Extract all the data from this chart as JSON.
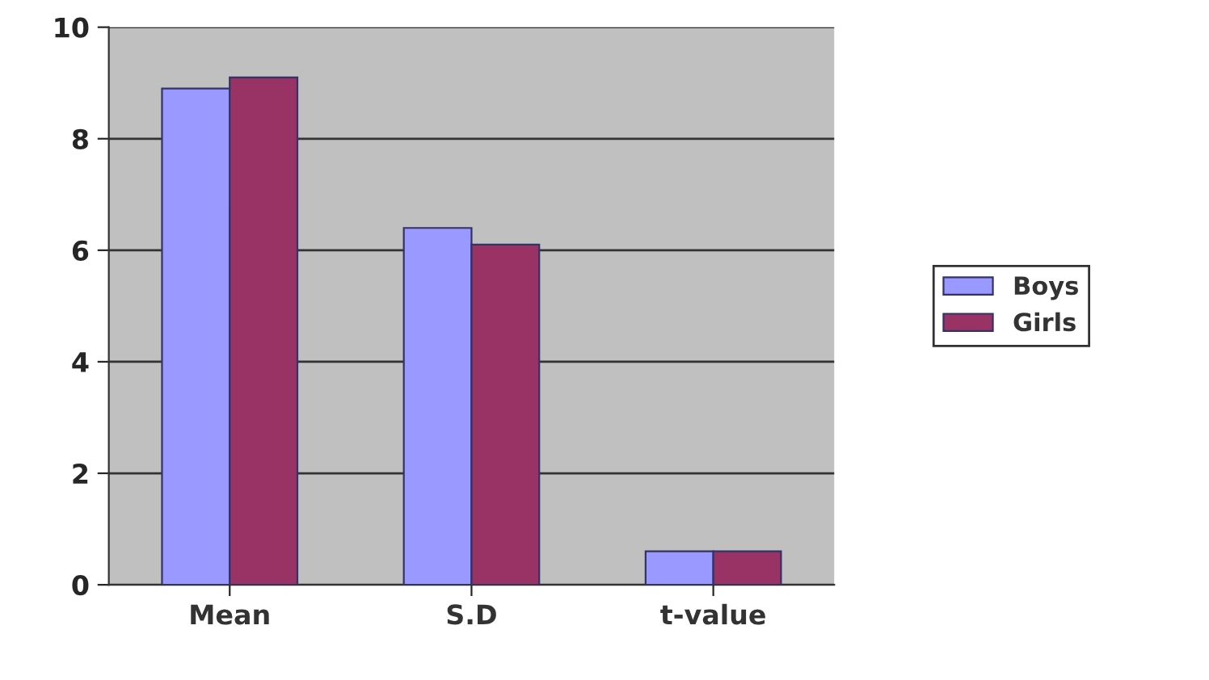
{
  "chart_data": {
    "type": "bar",
    "categories": [
      "Mean",
      "S.D",
      "t-value"
    ],
    "series": [
      {
        "name": "Boys",
        "color": "#9999ff",
        "values": [
          8.9,
          6.4,
          0.6
        ]
      },
      {
        "name": "Girls",
        "color": "#993366",
        "values": [
          9.1,
          6.1,
          0.6
        ]
      }
    ],
    "ylim": [
      0,
      10
    ],
    "yticks": [
      0,
      2,
      4,
      6,
      8,
      10
    ],
    "grid": "y",
    "legend": "right"
  }
}
